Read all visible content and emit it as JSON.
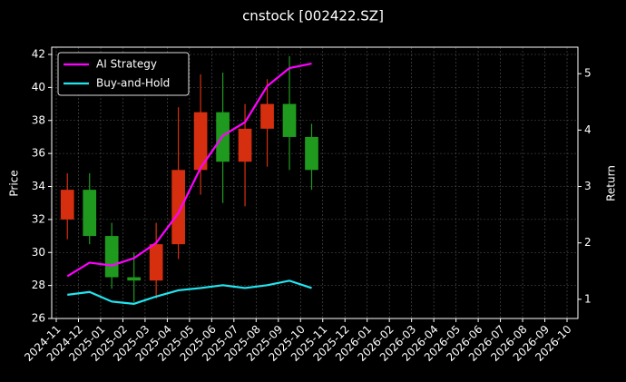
{
  "chart_data": {
    "type": "candlestick",
    "title": "cnstock [002422.SZ]",
    "y_label": "Price",
    "y2_label": "Return",
    "x": [
      "2024-11",
      "2024-12",
      "2025-01",
      "2025-02",
      "2025-03",
      "2025-04",
      "2025-05",
      "2025-06",
      "2025-07",
      "2025-08",
      "2025-09",
      "2025-10"
    ],
    "open": [
      32.0,
      33.8,
      31.0,
      28.5,
      28.3,
      30.5,
      35.0,
      38.5,
      35.5,
      37.5,
      39.0,
      37.0
    ],
    "high": [
      34.8,
      34.8,
      31.8,
      30.0,
      31.8,
      38.8,
      40.8,
      40.9,
      39.0,
      40.5,
      41.9,
      37.8
    ],
    "low": [
      30.8,
      30.5,
      27.8,
      27.0,
      27.2,
      29.6,
      33.5,
      33.0,
      32.8,
      35.2,
      35.0,
      33.8
    ],
    "close": [
      33.8,
      31.0,
      28.5,
      28.3,
      30.5,
      35.0,
      38.5,
      35.5,
      37.5,
      39.0,
      37.0,
      35.0
    ],
    "up_color": "#d62f10",
    "down_color": "#1f9a1f",
    "series": [
      {
        "name": "AI Strategy",
        "color": "#ff00ff",
        "axis": "y2",
        "values": [
          1.41,
          1.65,
          1.6,
          1.73,
          2.0,
          2.53,
          3.33,
          3.9,
          4.14,
          4.78,
          5.1,
          5.18
        ]
      },
      {
        "name": "Buy-and-Hold",
        "color": "#22e5f0",
        "axis": "y2",
        "values": [
          1.08,
          1.13,
          0.96,
          0.92,
          1.05,
          1.16,
          1.2,
          1.25,
          1.2,
          1.25,
          1.33,
          1.2
        ]
      }
    ],
    "xlim": [
      "2024-11",
      "2026-10"
    ],
    "xticks": [
      "2024-11",
      "2024-12",
      "2025-01",
      "2025-02",
      "2025-03",
      "2025-04",
      "2025-05",
      "2025-06",
      "2025-07",
      "2025-08",
      "2025-09",
      "2025-10",
      "2025-11",
      "2025-12",
      "2026-01",
      "2026-02",
      "2026-03",
      "2026-04",
      "2026-05",
      "2026-06",
      "2026-07",
      "2026-08",
      "2026-09",
      "2026-10"
    ],
    "ylim": [
      26,
      42.44
    ],
    "yticks": [
      26,
      28,
      30,
      32,
      34,
      36,
      38,
      40,
      42
    ],
    "y2lim": [
      0.66,
      5.47
    ],
    "y2ticks": [
      1,
      2,
      3,
      4,
      5
    ],
    "grid": true,
    "legend": "upper-left"
  }
}
